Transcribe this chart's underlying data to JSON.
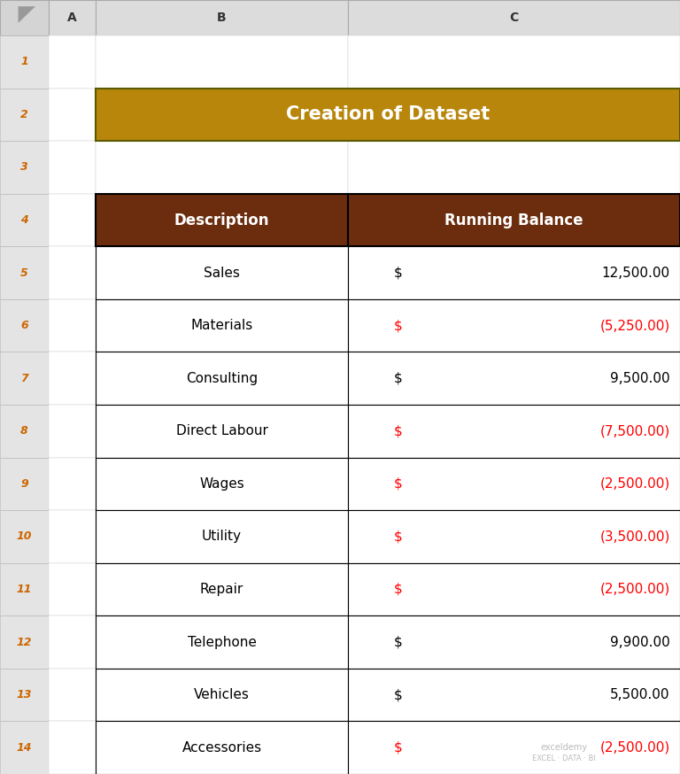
{
  "title": "Creation of Dataset",
  "title_bg_color": "#B8860B",
  "title_text_color": "#FFFFFF",
  "header_bg_color": "#6B2D0E",
  "header_text_color": "#FFFFFF",
  "header_cols": [
    "Description",
    "Running Balance"
  ],
  "rows": [
    {
      "desc": "Sales",
      "symbol": "$",
      "value": "12,500.00",
      "negative": false
    },
    {
      "desc": "Materials",
      "symbol": "$",
      "value": "(5,250.00)",
      "negative": true
    },
    {
      "desc": "Consulting",
      "symbol": "$",
      "value": "9,500.00",
      "negative": false
    },
    {
      "desc": "Direct Labour",
      "symbol": "$",
      "value": "(7,500.00)",
      "negative": true
    },
    {
      "desc": "Wages",
      "symbol": "$",
      "value": "(2,500.00)",
      "negative": true
    },
    {
      "desc": "Utility",
      "symbol": "$",
      "value": "(3,500.00)",
      "negative": true
    },
    {
      "desc": "Repair",
      "symbol": "$",
      "value": "(2,500.00)",
      "negative": true
    },
    {
      "desc": "Telephone",
      "symbol": "$",
      "value": "9,900.00",
      "negative": false
    },
    {
      "desc": "Vehicles",
      "symbol": "$",
      "value": "5,500.00",
      "negative": false
    },
    {
      "desc": "Accessories",
      "symbol": "$",
      "value": "(2,500.00)",
      "negative": true
    }
  ],
  "negative_color": "#FF0000",
  "positive_color": "#000000",
  "col_labels": [
    "A",
    "B",
    "C"
  ],
  "row_numbers": [
    "1",
    "2",
    "3",
    "4",
    "5",
    "6",
    "7",
    "8",
    "9",
    "10",
    "11",
    "12",
    "13",
    "14"
  ],
  "row_num_color": "#CC6600",
  "row_num_bg": "#E8E8E8",
  "col_header_bg": "#E0E0E0",
  "col_header_text": "#333333",
  "watermark_line1": "exceldemy",
  "watermark_line2": "EXCEL · DATA · BI",
  "watermark_color": "#BBBBBB"
}
